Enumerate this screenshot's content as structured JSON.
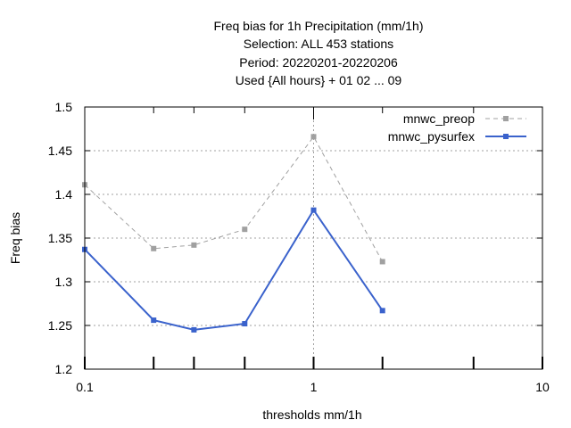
{
  "chart_data": {
    "type": "line",
    "title_lines": [
      "Freq bias  for 1h Precipitation (mm/1h)",
      "Selection: ALL    453 stations",
      "Period: 20220201-20220206",
      "Used {All hours} + 01 02 ... 09"
    ],
    "xlabel": "thresholds mm/1h",
    "ylabel": "Freq bias",
    "x_scale": "log",
    "xlim": [
      0.1,
      10
    ],
    "ylim": [
      1.2,
      1.5
    ],
    "x_ticks": [
      0.1,
      1,
      10
    ],
    "x_tick_labels": [
      "0.1",
      "1",
      "10"
    ],
    "x_minor_ticks": [
      0.2,
      0.3,
      0.5,
      2,
      5
    ],
    "y_ticks": [
      1.2,
      1.25,
      1.3,
      1.35,
      1.4,
      1.45,
      1.5
    ],
    "y_tick_labels": [
      "1.2",
      "1.25",
      "1.3",
      "1.35",
      "1.4",
      "1.45",
      "1.5"
    ],
    "grid": true,
    "legend_position": "top-right",
    "series": [
      {
        "name": "mnwc_preop",
        "color": "#a0a0a0",
        "dash": true,
        "x": [
          0.1,
          0.2,
          0.3,
          0.5,
          1,
          2
        ],
        "y": [
          1.411,
          1.338,
          1.342,
          1.36,
          1.466,
          1.323
        ]
      },
      {
        "name": "mnwc_pysurfex",
        "color": "#3a62cc",
        "dash": false,
        "x": [
          0.1,
          0.2,
          0.3,
          0.5,
          1,
          2
        ],
        "y": [
          1.337,
          1.256,
          1.245,
          1.252,
          1.382,
          1.267
        ]
      }
    ]
  }
}
